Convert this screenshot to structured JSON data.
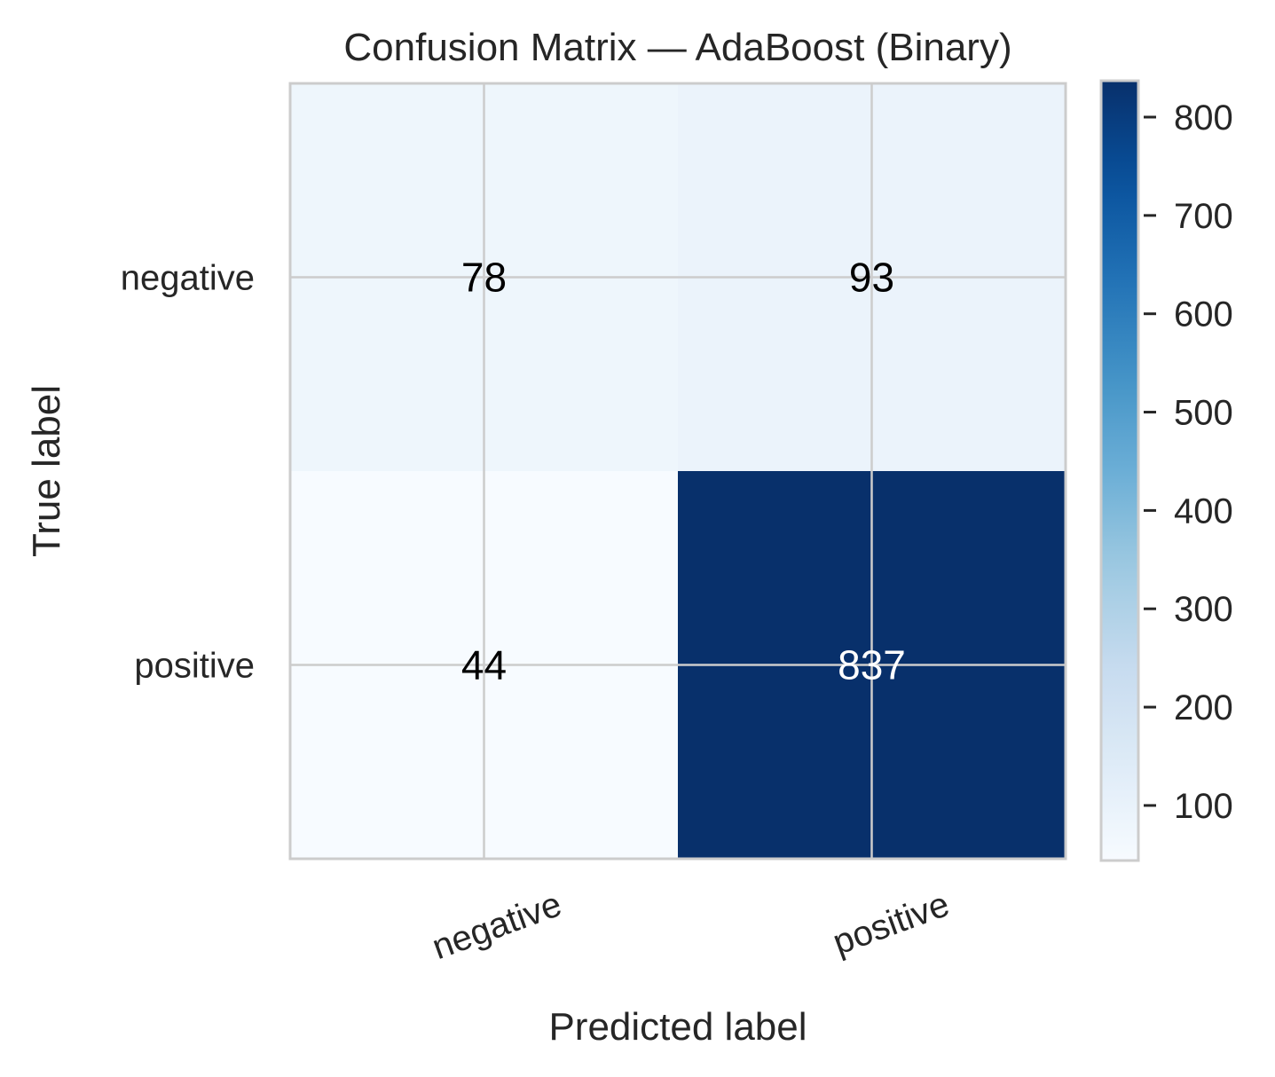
{
  "chart_data": {
    "type": "heatmap",
    "title": "Confusion Matrix — AdaBoost (Binary)",
    "xlabel": "Predicted label",
    "ylabel": "True label",
    "x_categories": [
      "negative",
      "positive"
    ],
    "y_categories": [
      "negative",
      "positive"
    ],
    "matrix": [
      [
        78,
        93
      ],
      [
        44,
        837
      ]
    ],
    "colormap": "Blues",
    "colorbar": {
      "range": [
        44,
        837
      ],
      "ticks": [
        100,
        200,
        300,
        400,
        500,
        600,
        700,
        800
      ]
    },
    "grid": true
  }
}
